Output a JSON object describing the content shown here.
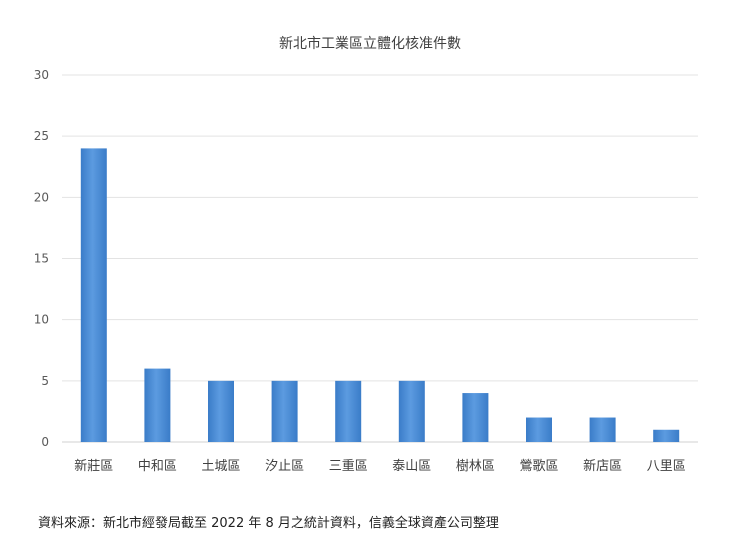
{
  "chart_data": {
    "type": "bar",
    "title": "新北市工業區立體化核准件數",
    "categories": [
      "新莊區",
      "中和區",
      "土城區",
      "汐止區",
      "三重區",
      "泰山區",
      "樹林區",
      "鶯歌區",
      "新店區",
      "八里區"
    ],
    "series": [
      {
        "values": [
          24,
          6,
          5,
          5,
          5,
          5,
          4,
          2,
          2,
          1
        ]
      }
    ],
    "ylim": [
      0,
      30
    ],
    "yticks": [
      0,
      5,
      10,
      15,
      20,
      25,
      30
    ],
    "grid": true,
    "xlabel": "",
    "ylabel": "",
    "bar_color": "#4a8fd6"
  },
  "source_note": "資料來源：新北市經發局截至 2022 年 8 月之統計資料，信義全球資產公司整理"
}
